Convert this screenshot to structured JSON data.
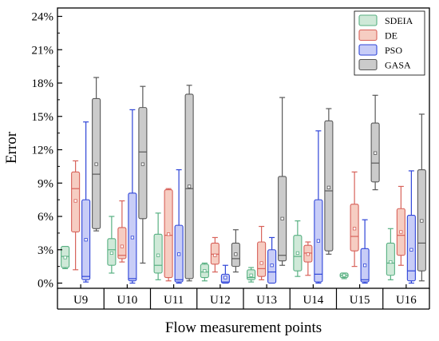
{
  "chart_data": {
    "type": "box",
    "xlabel": "Flow measurement points",
    "ylabel": "Error",
    "ylim": [
      0,
      24
    ],
    "yticks": [
      0,
      3,
      6,
      9,
      12,
      15,
      18,
      21,
      24
    ],
    "ytick_suffix": "%",
    "grid": false,
    "legend_position": "top-right",
    "categories": [
      "U9",
      "U10",
      "U11",
      "U12",
      "U13",
      "U14",
      "U15",
      "U16"
    ],
    "series": [
      {
        "name": "SDEIA",
        "color": "#cfe9d8",
        "edge": "#58b082",
        "boxes": [
          {
            "whisker_low": 1.3,
            "q1": 1.4,
            "median": 2.4,
            "q3": 3.3,
            "whisker_high": 3.3,
            "mean": 2.3
          },
          {
            "whisker_low": 0.9,
            "q1": 1.6,
            "median": 3.0,
            "q3": 4.0,
            "whisker_high": 6.0,
            "mean": 2.7
          },
          {
            "whisker_low": 0.3,
            "q1": 0.9,
            "median": 1.6,
            "q3": 4.4,
            "whisker_high": 6.3,
            "mean": 2.5
          },
          {
            "whisker_low": 0.2,
            "q1": 0.5,
            "median": 1.0,
            "q3": 1.7,
            "whisker_high": 1.8,
            "mean": 1.1
          },
          {
            "whisker_low": 0.1,
            "q1": 0.3,
            "median": 0.5,
            "q3": 1.2,
            "whisker_high": 1.4,
            "mean": 0.7
          },
          {
            "whisker_low": 0.6,
            "q1": 1.1,
            "median": 2.4,
            "q3": 4.3,
            "whisker_high": 5.6,
            "mean": 2.7
          },
          {
            "whisker_low": 0.4,
            "q1": 0.5,
            "median": 0.7,
            "q3": 0.9,
            "whisker_high": 0.9,
            "mean": 0.7
          },
          {
            "whisker_low": 0.3,
            "q1": 0.7,
            "median": 1.8,
            "q3": 3.6,
            "whisker_high": 4.9,
            "mean": 1.9
          }
        ]
      },
      {
        "name": "DE",
        "color": "#f6cdc2",
        "edge": "#d8625a",
        "boxes": [
          {
            "whisker_low": 1.2,
            "q1": 4.6,
            "median": 8.5,
            "q3": 10.0,
            "whisker_high": 11.0,
            "mean": 7.4
          },
          {
            "whisker_low": 1.9,
            "q1": 2.2,
            "median": 2.5,
            "q3": 5.0,
            "whisker_high": 7.4,
            "mean": 3.3
          },
          {
            "whisker_low": 0.2,
            "q1": 0.5,
            "median": 4.3,
            "q3": 8.4,
            "whisker_high": 8.5,
            "mean": 4.4
          },
          {
            "whisker_low": 1.0,
            "q1": 1.7,
            "median": 2.6,
            "q3": 3.6,
            "whisker_high": 4.1,
            "mean": 2.5
          },
          {
            "whisker_low": 0.3,
            "q1": 0.6,
            "median": 1.3,
            "q3": 3.7,
            "whisker_high": 5.1,
            "mean": 1.8
          },
          {
            "whisker_low": 0.7,
            "q1": 1.9,
            "median": 2.7,
            "q3": 3.4,
            "whisker_high": 3.7,
            "mean": 2.6
          },
          {
            "whisker_low": 1.5,
            "q1": 2.9,
            "median": 4.2,
            "q3": 7.1,
            "whisker_high": 10.0,
            "mean": 4.9
          },
          {
            "whisker_low": 1.6,
            "q1": 2.5,
            "median": 4.3,
            "q3": 6.7,
            "whisker_high": 8.7,
            "mean": 4.6
          }
        ]
      },
      {
        "name": "PSO",
        "color": "#c8cdf7",
        "edge": "#2f45d8",
        "boxes": [
          {
            "whisker_low": 0.1,
            "q1": 0.3,
            "median": 0.6,
            "q3": 7.5,
            "whisker_high": 14.5,
            "mean": 3.9
          },
          {
            "whisker_low": 0.0,
            "q1": 0.2,
            "median": 0.4,
            "q3": 8.1,
            "whisker_high": 15.6,
            "mean": 4.1
          },
          {
            "whisker_low": 0.0,
            "q1": 0.1,
            "median": 0.3,
            "q3": 5.2,
            "whisker_high": 10.2,
            "mean": 2.6
          },
          {
            "whisker_low": 0.0,
            "q1": 0.0,
            "median": 0.1,
            "q3": 0.8,
            "whisker_high": 1.6,
            "mean": 0.5
          },
          {
            "whisker_low": 0.0,
            "q1": 0.0,
            "median": 1.0,
            "q3": 3.0,
            "whisker_high": 4.1,
            "mean": 1.6
          },
          {
            "whisker_low": 0.0,
            "q1": 0.1,
            "median": 0.8,
            "q3": 7.5,
            "whisker_high": 13.7,
            "mean": 3.8
          },
          {
            "whisker_low": 0.0,
            "q1": 0.1,
            "median": 0.3,
            "q3": 3.1,
            "whisker_high": 5.7,
            "mean": 1.6
          },
          {
            "whisker_low": 0.0,
            "q1": 0.2,
            "median": 1.1,
            "q3": 6.1,
            "whisker_high": 10.1,
            "mean": 3.0
          }
        ]
      },
      {
        "name": "GASA",
        "color": "#cbcbcb",
        "edge": "#595959",
        "boxes": [
          {
            "whisker_low": 4.7,
            "q1": 4.9,
            "median": 9.8,
            "q3": 16.6,
            "whisker_high": 18.5,
            "mean": 10.7
          },
          {
            "whisker_low": 1.8,
            "q1": 5.8,
            "median": 11.8,
            "q3": 15.8,
            "whisker_high": 17.7,
            "mean": 10.7
          },
          {
            "whisker_low": 0.2,
            "q1": 0.4,
            "median": 8.5,
            "q3": 17.0,
            "whisker_high": 17.8,
            "mean": 8.7
          },
          {
            "whisker_low": 1.0,
            "q1": 1.5,
            "median": 2.2,
            "q3": 3.6,
            "whisker_high": 4.8,
            "mean": 2.6
          },
          {
            "whisker_low": 1.6,
            "q1": 2.0,
            "median": 2.5,
            "q3": 9.6,
            "whisker_high": 16.7,
            "mean": 5.8
          },
          {
            "whisker_low": 2.6,
            "q1": 2.9,
            "median": 8.3,
            "q3": 14.6,
            "whisker_high": 15.7,
            "mean": 8.6
          },
          {
            "whisker_low": 8.4,
            "q1": 9.1,
            "median": 10.8,
            "q3": 14.4,
            "whisker_high": 16.9,
            "mean": 11.7
          },
          {
            "whisker_low": 0.2,
            "q1": 1.1,
            "median": 3.6,
            "q3": 10.2,
            "whisker_high": 15.2,
            "mean": 5.6
          }
        ]
      }
    ]
  }
}
